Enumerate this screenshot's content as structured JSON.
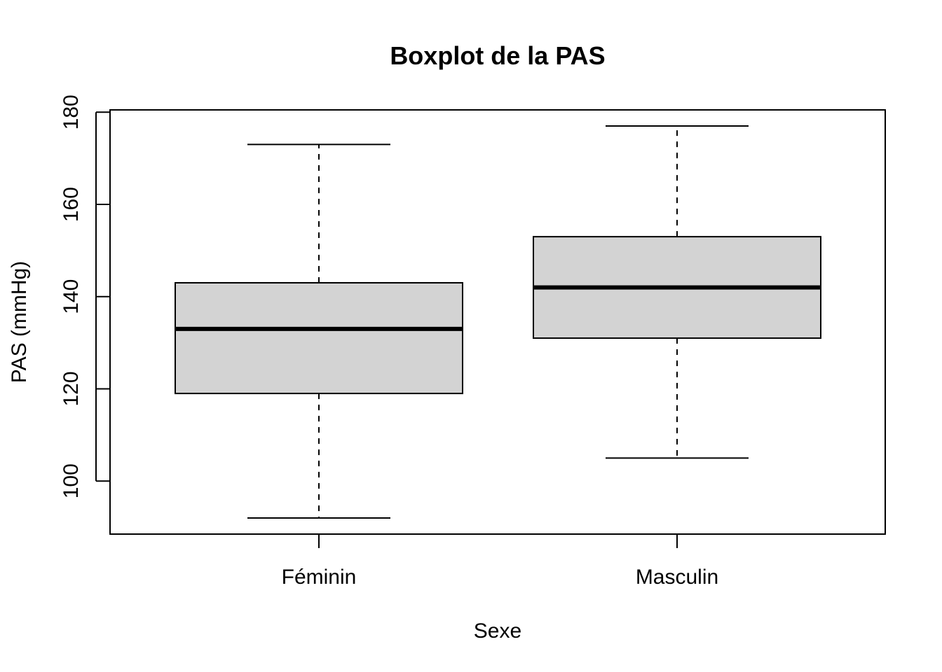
{
  "chart_data": {
    "type": "boxplot",
    "title": "Boxplot de la PAS",
    "xlabel": "Sexe",
    "ylabel": "PAS (mmHg)",
    "categories": [
      "Féminin",
      "Masculin"
    ],
    "boxes": [
      {
        "category": "Féminin",
        "whisker_low": 92,
        "q1": 119,
        "median": 133,
        "q3": 143,
        "whisker_high": 173
      },
      {
        "category": "Masculin",
        "whisker_low": 105,
        "q1": 131,
        "median": 142,
        "q3": 153,
        "whisker_high": 177
      }
    ],
    "yticks": [
      100,
      120,
      140,
      160,
      180
    ],
    "ylim": [
      88.5,
      180.5
    ],
    "grid": false,
    "colors": {
      "box_fill": "#d3d3d3",
      "line": "#000000",
      "background": "#ffffff"
    }
  }
}
